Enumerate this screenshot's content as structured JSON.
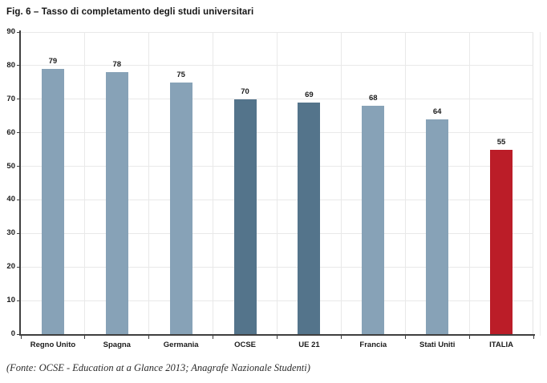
{
  "chart_data": {
    "type": "bar",
    "title": "Fig. 6 – Tasso di completamento degli studi universitari",
    "categories": [
      "Regno Unito",
      "Spagna",
      "Germania",
      "OCSE",
      "UE 21",
      "Francia",
      "Stati Uniti",
      "ITALIA"
    ],
    "values": [
      79,
      78,
      75,
      70,
      69,
      68,
      64,
      55
    ],
    "bar_color_roles": [
      "light",
      "light",
      "light",
      "dark",
      "dark",
      "light",
      "light",
      "highlight"
    ],
    "colors": {
      "light": "#87a2b7",
      "dark": "#54748b",
      "highlight": "#bb1d28",
      "axis": "#3f3f3f",
      "grid": "#e9e9e9",
      "text": "#1c1c1c"
    },
    "ylim": [
      0,
      90
    ],
    "ytick_step": 10,
    "yticks": [
      0,
      10,
      20,
      30,
      40,
      50,
      60,
      70,
      80,
      90
    ],
    "grid": true,
    "legend": "none",
    "xlabel": "",
    "ylabel": "",
    "source": "(Fonte: OCSE - Education at a Glance 2013; Anagrafe Nazionale Studenti)"
  }
}
